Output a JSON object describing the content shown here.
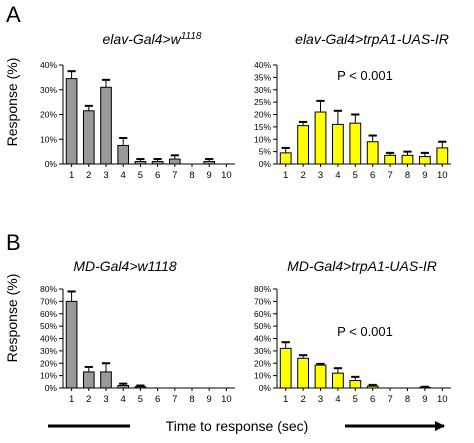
{
  "panels": [
    {
      "letter": "A",
      "y_label": "Response (%)"
    },
    {
      "letter": "B",
      "y_label": "Response (%)"
    }
  ],
  "x_label": "Time to response (sec)",
  "chart_data": [
    {
      "type": "bar",
      "title": "elav-Gal4>w",
      "title_sup": "1118",
      "categories": [
        "1",
        "2",
        "3",
        "4",
        "5",
        "6",
        "7",
        "8",
        "9",
        "10"
      ],
      "values": [
        34.5,
        21.5,
        31,
        7.5,
        1,
        1,
        2,
        0,
        1,
        0
      ],
      "errors": [
        3,
        2,
        3,
        3,
        1,
        1,
        1.5,
        0,
        1,
        0
      ],
      "ylim": [
        0,
        40
      ],
      "yticks": [
        "0%",
        "10%",
        "20%",
        "30%",
        "40%"
      ],
      "annotation": "",
      "color": "#999999"
    },
    {
      "type": "bar",
      "title": "elav-Gal4>trpA1-UAS-IR",
      "title_sup": "",
      "categories": [
        "1",
        "2",
        "3",
        "4",
        "5",
        "6",
        "7",
        "8",
        "9",
        "10"
      ],
      "values": [
        4.5,
        15.5,
        21,
        16,
        16.5,
        9,
        3.5,
        3.5,
        3,
        6.5
      ],
      "errors": [
        2,
        1.5,
        4.5,
        5.5,
        3.5,
        2.5,
        1,
        1.5,
        1.5,
        2.5
      ],
      "ylim": [
        0,
        40
      ],
      "yticks": [
        "0%",
        "5%",
        "10%",
        "15%",
        "20%",
        "25%",
        "30%",
        "35%",
        "40%"
      ],
      "annotation": "P < 0.001",
      "color": "#ffff00"
    },
    {
      "type": "bar",
      "title": "MD-Gal4>w1118",
      "title_sup": "",
      "categories": [
        "1",
        "2",
        "3",
        "4",
        "5",
        "6",
        "7",
        "8",
        "9",
        "10"
      ],
      "values": [
        70,
        13,
        13,
        2,
        1,
        0,
        0,
        0,
        0,
        0
      ],
      "errors": [
        8,
        4,
        7,
        1.5,
        1,
        0,
        0,
        0,
        0,
        0
      ],
      "ylim": [
        0,
        80
      ],
      "yticks": [
        "0%",
        "10%",
        "20%",
        "30%",
        "40%",
        "50%",
        "60%",
        "70%",
        "80%"
      ],
      "annotation": "",
      "color": "#999999"
    },
    {
      "type": "bar",
      "title": "MD-Gal4>trpA1-UAS-IR",
      "title_sup": "",
      "categories": [
        "1",
        "2",
        "3",
        "4",
        "5",
        "6",
        "7",
        "8",
        "9",
        "10"
      ],
      "values": [
        32,
        24,
        18.5,
        12,
        6,
        1.5,
        0,
        0,
        0.5,
        0
      ],
      "errors": [
        5,
        2.5,
        1,
        4,
        3,
        1,
        0,
        0,
        0.5,
        0
      ],
      "ylim": [
        0,
        80
      ],
      "yticks": [
        "0%",
        "10%",
        "20%",
        "30%",
        "40%",
        "50%",
        "60%",
        "70%",
        "80%"
      ],
      "annotation": "P < 0.001",
      "color": "#ffff00"
    }
  ]
}
